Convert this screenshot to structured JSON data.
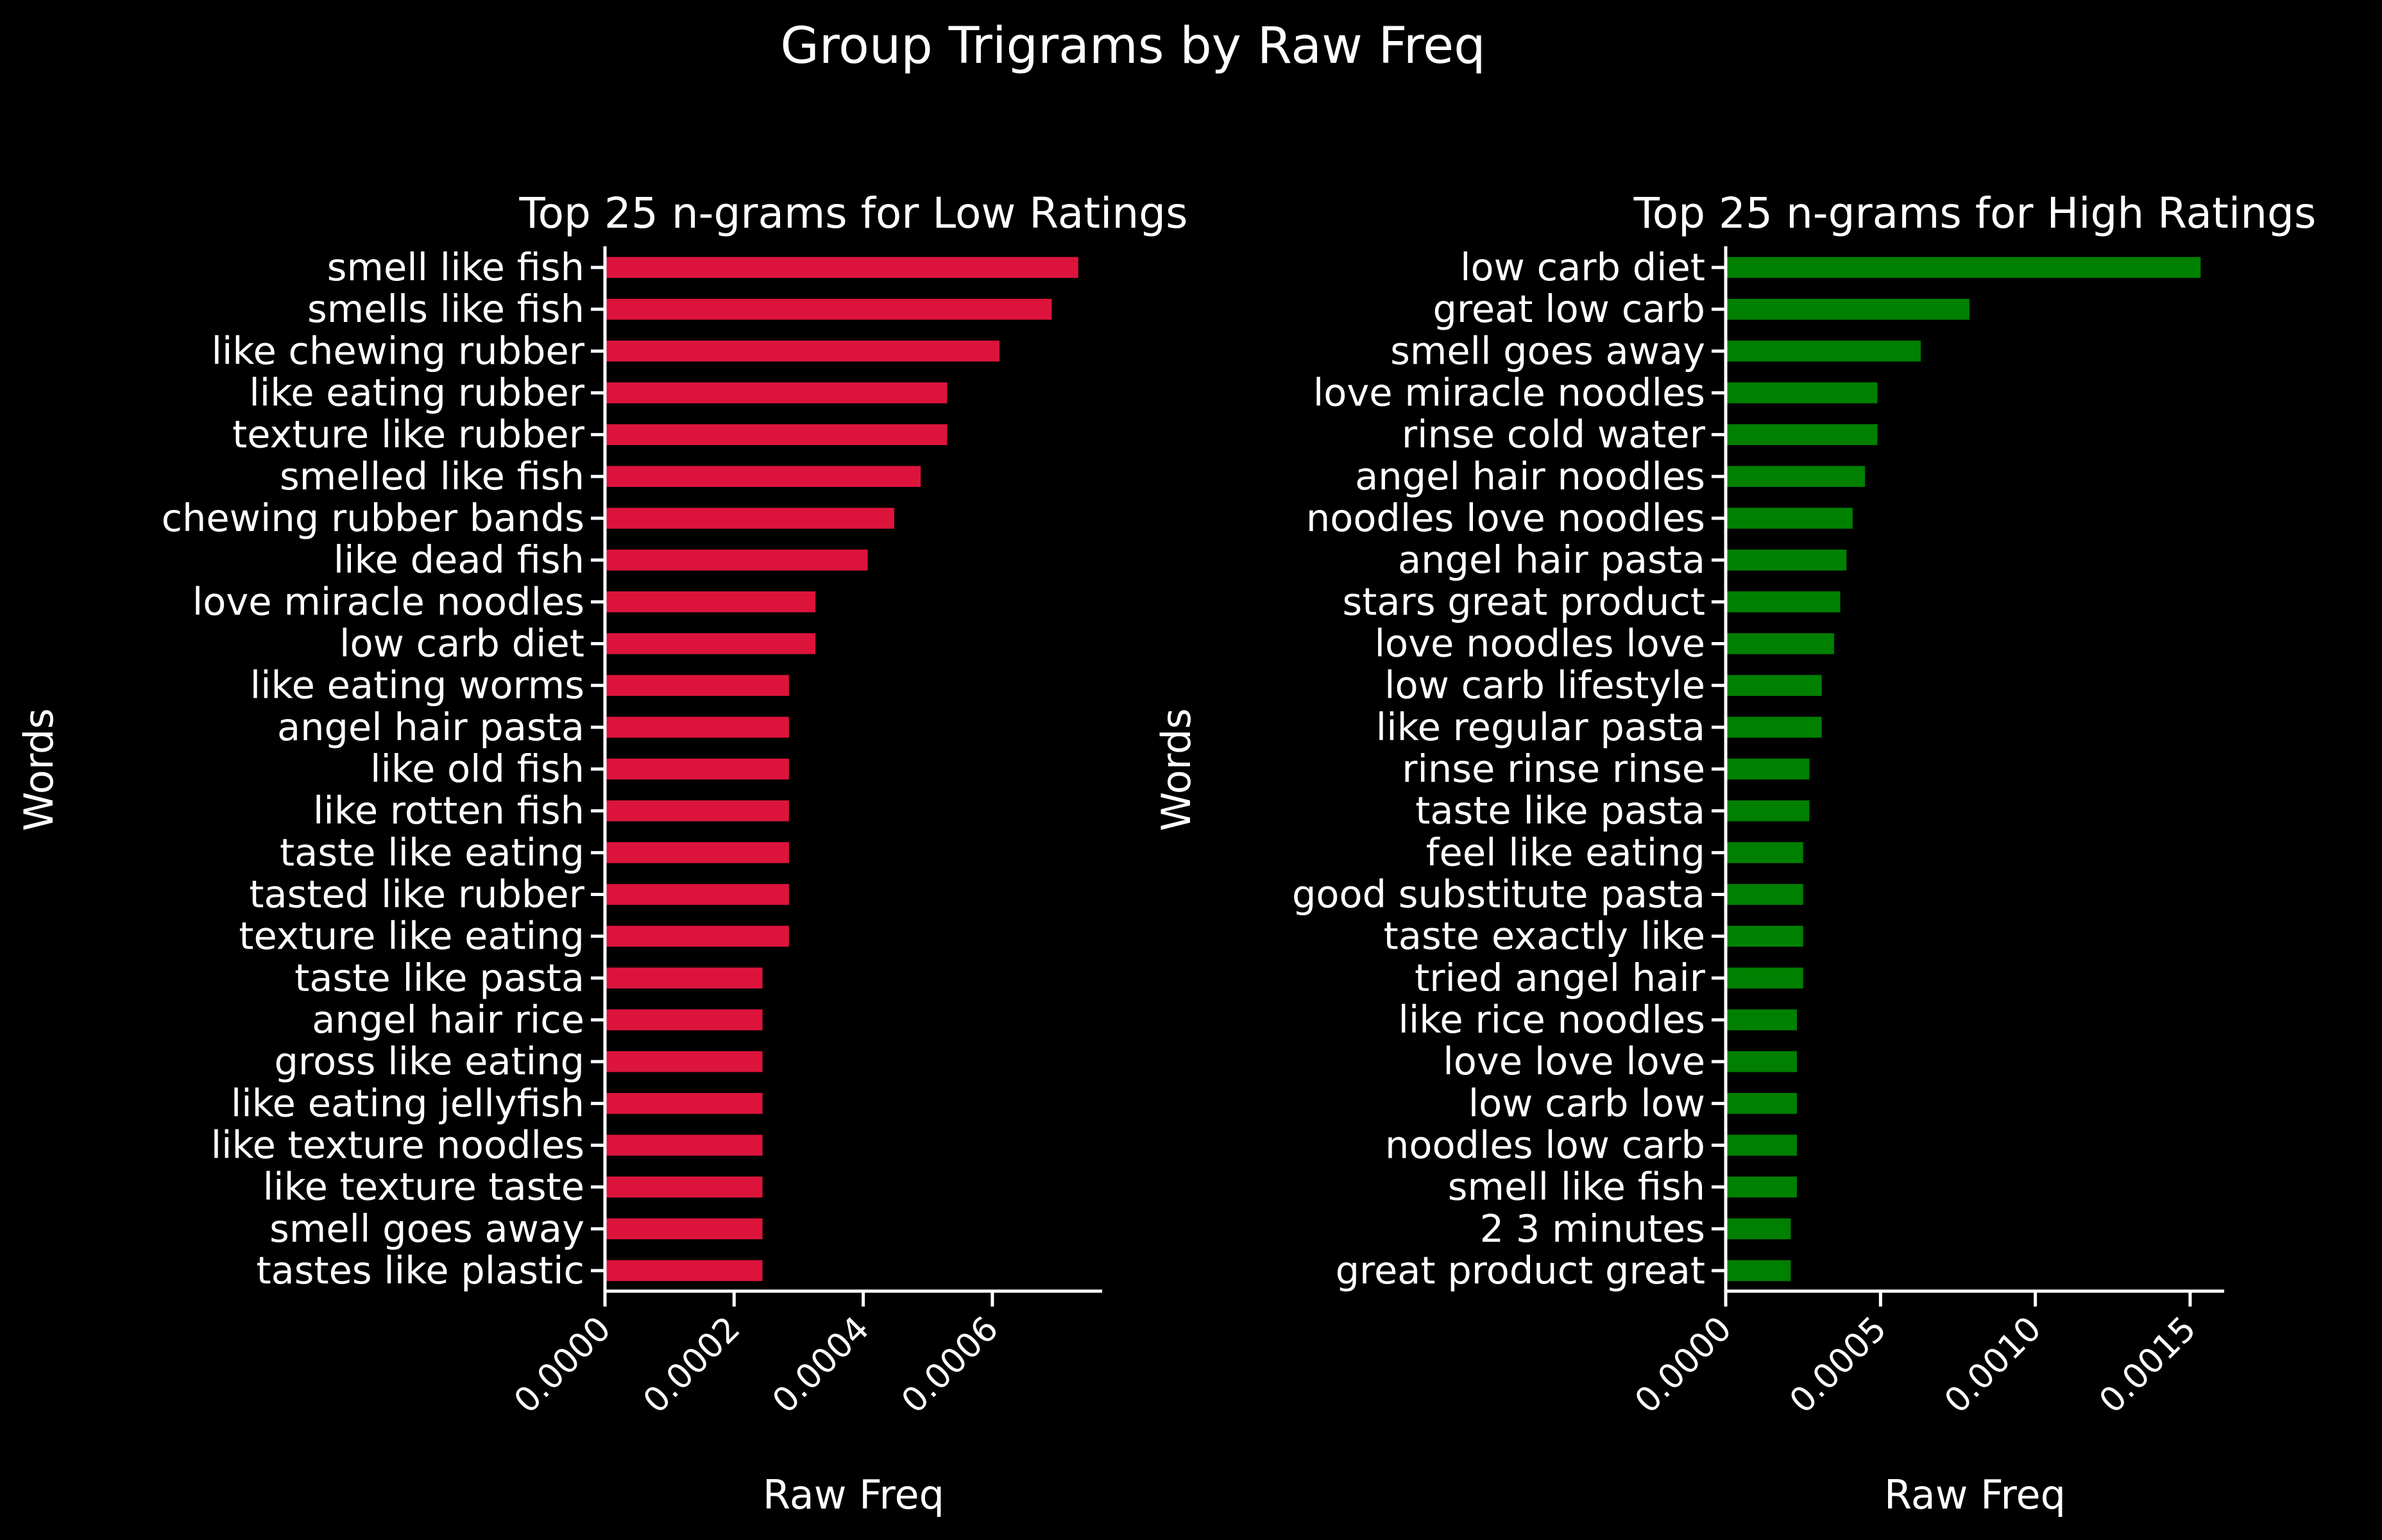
{
  "figure": {
    "suptitle": "Group Trigrams by Raw Freq",
    "background": "#000000",
    "text_color": "#ffffff"
  },
  "chart_data": [
    {
      "type": "bar",
      "orientation": "horizontal",
      "title": "Top 25 n-grams for Low Ratings",
      "xlabel": "Raw Freq",
      "ylabel": "Words",
      "color": "#dc143c",
      "xlim": [
        0,
        0.00077
      ],
      "xticks": [
        0.0,
        0.0002,
        0.0004,
        0.0006
      ],
      "xtick_labels": [
        "0.0000",
        "0.0002",
        "0.0004",
        "0.0006"
      ],
      "grid": false,
      "categories": [
        "smell like fish",
        "smells like fish",
        "like chewing rubber",
        "like eating rubber",
        "texture like rubber",
        "smelled like fish",
        "chewing rubber bands",
        "like dead fish",
        "love miracle noodles",
        "low carb diet",
        "like eating worms",
        "angel hair pasta",
        "like old fish",
        "like rotten fish",
        "taste like eating",
        "tasted like rubber",
        "texture like eating",
        "taste like pasta",
        "angel hair rice",
        "gross like eating",
        "like eating jellyfish",
        "like texture noodles",
        "like texture taste",
        "smell goes away",
        "tastes like plastic"
      ],
      "values": [
        0.000733,
        0.000692,
        0.000611,
        0.00053,
        0.00053,
        0.000489,
        0.000448,
        0.000407,
        0.000326,
        0.000326,
        0.000285,
        0.000285,
        0.000285,
        0.000285,
        0.000285,
        0.000285,
        0.000285,
        0.000244,
        0.000244,
        0.000244,
        0.000244,
        0.000244,
        0.000244,
        0.000244,
        0.000244
      ]
    },
    {
      "type": "bar",
      "orientation": "horizontal",
      "title": "Top 25 n-grams for High Ratings",
      "xlabel": "Raw Freq",
      "ylabel": "Words",
      "color": "#008000",
      "xlim": [
        0,
        0.00161
      ],
      "xticks": [
        0.0,
        0.0005,
        0.001,
        0.0015
      ],
      "xtick_labels": [
        "0.0000",
        "0.0005",
        "0.0010",
        "0.0015"
      ],
      "grid": false,
      "categories": [
        "low carb diet",
        "great low carb",
        "smell goes away",
        "love miracle noodles",
        "rinse cold water",
        "angel hair noodles",
        "noodles love noodles",
        "angel hair pasta",
        "stars great product",
        "love noodles love",
        "low carb lifestyle",
        "like regular pasta",
        "rinse rinse rinse",
        "taste like pasta",
        "feel like eating",
        "good substitute pasta",
        "taste exactly like",
        "tried angel hair",
        "like rice noodles",
        "love love love",
        "low carb low",
        "noodles low carb",
        "smell like fish",
        "2 3 minutes",
        "great product great"
      ],
      "values": [
        0.001534,
        0.000787,
        0.00063,
        0.00049,
        0.00049,
        0.00045,
        0.00041,
        0.00039,
        0.00037,
        0.00035,
        0.00031,
        0.00031,
        0.00027,
        0.00027,
        0.00025,
        0.00025,
        0.00025,
        0.00025,
        0.00023,
        0.00023,
        0.00023,
        0.00023,
        0.00023,
        0.00021,
        0.00021
      ]
    }
  ]
}
